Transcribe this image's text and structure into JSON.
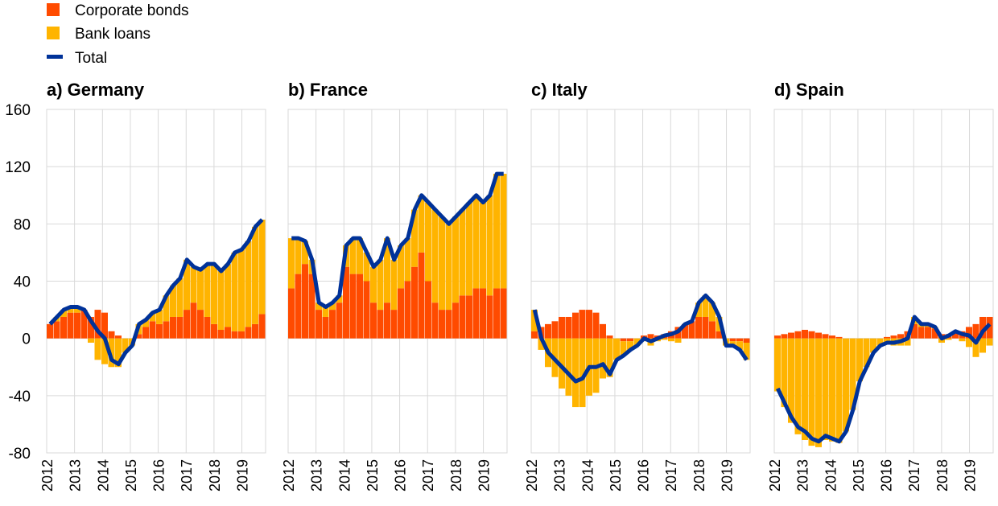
{
  "colors": {
    "bonds": "#FF4B00",
    "loans": "#FFB400",
    "total": "#003299",
    "grid": "#D9D9D9"
  },
  "chart_data": {
    "type": "bar",
    "subtype": "stacked bar with line overlay, 4 panels",
    "legend": [
      "Corporate bonds",
      "Bank loans",
      "Total"
    ],
    "legend_placement": "top-left",
    "ylim": [
      -80,
      160
    ],
    "yticks": [
      160,
      120,
      80,
      40,
      0,
      -40,
      -80
    ],
    "xticks": [
      "2012",
      "2013",
      "2014",
      "2015",
      "2016",
      "2017",
      "2018",
      "2019"
    ],
    "x_frequency": "quarterly, 2012Q1-2019Q4",
    "grid": true,
    "panels": [
      {
        "title": "a) Germany",
        "bonds": [
          10,
          12,
          15,
          18,
          18,
          20,
          15,
          20,
          18,
          5,
          2,
          0,
          0,
          3,
          8,
          12,
          10,
          12,
          15,
          15,
          20,
          25,
          20,
          15,
          10,
          6,
          8,
          5,
          5,
          8,
          10,
          17
        ],
        "total": [
          10,
          15,
          20,
          22,
          22,
          20,
          12,
          5,
          0,
          -15,
          -18,
          -10,
          -5,
          10,
          13,
          18,
          20,
          30,
          37,
          42,
          55,
          50,
          48,
          52,
          52,
          47,
          52,
          60,
          62,
          68,
          78,
          83
        ]
      },
      {
        "title": "b) France",
        "bonds": [
          35,
          45,
          52,
          45,
          20,
          15,
          20,
          25,
          50,
          45,
          45,
          40,
          25,
          20,
          25,
          20,
          35,
          40,
          50,
          60,
          40,
          25,
          20,
          20,
          25,
          30,
          30,
          35,
          35,
          30,
          35,
          35
        ],
        "total": [
          70,
          70,
          68,
          55,
          25,
          22,
          25,
          30,
          65,
          70,
          70,
          60,
          50,
          55,
          70,
          55,
          65,
          70,
          90,
          100,
          95,
          90,
          85,
          80,
          85,
          90,
          95,
          100,
          95,
          100,
          115,
          115
        ]
      },
      {
        "title": "c) Italy",
        "bonds": [
          5,
          8,
          10,
          12,
          15,
          15,
          18,
          20,
          20,
          18,
          10,
          2,
          0,
          -2,
          -2,
          0,
          2,
          3,
          2,
          3,
          5,
          8,
          10,
          12,
          15,
          15,
          12,
          5,
          0,
          -2,
          -2,
          -3
        ],
        "total": [
          20,
          0,
          -10,
          -15,
          -20,
          -25,
          -30,
          -28,
          -20,
          -20,
          -18,
          -25,
          -15,
          -12,
          -8,
          -5,
          0,
          -2,
          0,
          2,
          3,
          5,
          10,
          12,
          25,
          30,
          25,
          15,
          -5,
          -5,
          -8,
          -15
        ]
      },
      {
        "title": "d) Spain",
        "bonds": [
          2,
          3,
          4,
          5,
          6,
          5,
          4,
          3,
          2,
          1,
          0,
          0,
          0,
          0,
          0,
          0,
          1,
          2,
          3,
          5,
          10,
          8,
          8,
          7,
          3,
          3,
          4,
          5,
          8,
          10,
          15,
          15
        ],
        "total": [
          -35,
          -45,
          -55,
          -62,
          -65,
          -70,
          -72,
          -68,
          -70,
          -72,
          -65,
          -50,
          -30,
          -20,
          -10,
          -5,
          -3,
          -3,
          -2,
          0,
          15,
          10,
          10,
          8,
          0,
          2,
          5,
          3,
          2,
          -3,
          5,
          10
        ]
      }
    ]
  }
}
